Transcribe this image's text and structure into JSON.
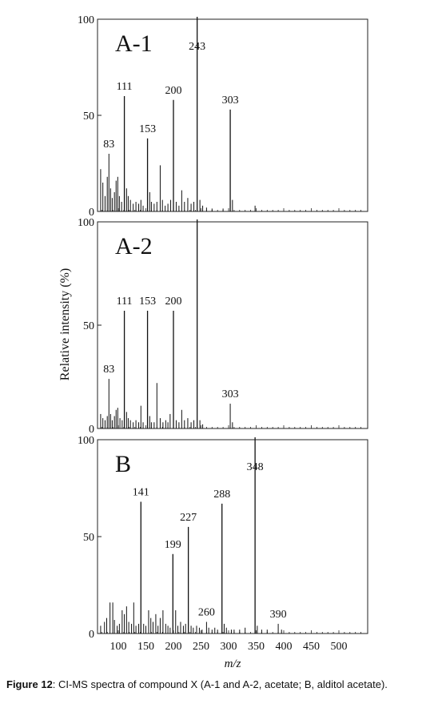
{
  "caption": {
    "label": "Figure 12",
    "text": ": CI-MS spectra of compound X (A-1 and A-2, acetate; B, alditol acetate)."
  },
  "shared_axes": {
    "xlabel": "m/z",
    "ylabel": "Relative intensity (%)",
    "x_ticks": [
      100,
      150,
      200,
      250,
      300,
      350,
      400,
      450,
      500
    ],
    "x_range": [
      60,
      550
    ],
    "y_ticks": [
      0,
      50,
      100
    ],
    "y_range": [
      0,
      100
    ]
  },
  "chart_data": [
    {
      "type": "bar",
      "title": "A-1",
      "xlabel": "",
      "ylabel": "",
      "xlim": [
        60,
        550
      ],
      "ylim": [
        0,
        100
      ],
      "peak_labels": [
        {
          "mz": 83,
          "text": "83",
          "intensity": 30
        },
        {
          "mz": 111,
          "text": "111",
          "intensity": 60
        },
        {
          "mz": 153,
          "text": "153",
          "intensity": 38
        },
        {
          "mz": 200,
          "text": "200",
          "intensity": 58
        },
        {
          "mz": 243,
          "text": "243",
          "intensity": 100
        },
        {
          "mz": 303,
          "text": "303",
          "intensity": 53
        }
      ],
      "peaks": [
        [
          68,
          22
        ],
        [
          72,
          15
        ],
        [
          76,
          8
        ],
        [
          80,
          18
        ],
        [
          83,
          30
        ],
        [
          86,
          12
        ],
        [
          89,
          7
        ],
        [
          93,
          10
        ],
        [
          96,
          16
        ],
        [
          99,
          18
        ],
        [
          102,
          8
        ],
        [
          106,
          5
        ],
        [
          111,
          60
        ],
        [
          115,
          12
        ],
        [
          118,
          8
        ],
        [
          122,
          6
        ],
        [
          127,
          4
        ],
        [
          132,
          5
        ],
        [
          137,
          4
        ],
        [
          141,
          6
        ],
        [
          145,
          3
        ],
        [
          153,
          38
        ],
        [
          157,
          10
        ],
        [
          160,
          5
        ],
        [
          165,
          4
        ],
        [
          170,
          5
        ],
        [
          176,
          24
        ],
        [
          180,
          6
        ],
        [
          185,
          3
        ],
        [
          190,
          4
        ],
        [
          195,
          6
        ],
        [
          200,
          58
        ],
        [
          205,
          5
        ],
        [
          210,
          3
        ],
        [
          215,
          11
        ],
        [
          220,
          5
        ],
        [
          226,
          7
        ],
        [
          232,
          4
        ],
        [
          237,
          5
        ],
        [
          243,
          100
        ],
        [
          248,
          6
        ],
        [
          253,
          3
        ],
        [
          260,
          2
        ],
        [
          270,
          1.5
        ],
        [
          290,
          1.5
        ],
        [
          303,
          53
        ],
        [
          307,
          6
        ],
        [
          348,
          3
        ]
      ]
    },
    {
      "type": "bar",
      "title": "A-2",
      "xlabel": "",
      "ylabel": "",
      "xlim": [
        60,
        550
      ],
      "ylim": [
        0,
        100
      ],
      "peak_labels": [
        {
          "mz": 83,
          "text": "83",
          "intensity": 24
        },
        {
          "mz": 111,
          "text": "111",
          "intensity": 57
        },
        {
          "mz": 153,
          "text": "153",
          "intensity": 57
        },
        {
          "mz": 200,
          "text": "200",
          "intensity": 57
        },
        {
          "mz": 303,
          "text": "303",
          "intensity": 12
        }
      ],
      "peaks": [
        [
          68,
          7
        ],
        [
          72,
          5
        ],
        [
          76,
          4
        ],
        [
          80,
          6
        ],
        [
          83,
          24
        ],
        [
          86,
          7
        ],
        [
          89,
          4
        ],
        [
          93,
          6
        ],
        [
          96,
          9
        ],
        [
          99,
          10
        ],
        [
          103,
          5
        ],
        [
          107,
          4
        ],
        [
          111,
          57
        ],
        [
          115,
          8
        ],
        [
          118,
          5
        ],
        [
          122,
          4
        ],
        [
          127,
          3
        ],
        [
          132,
          4
        ],
        [
          137,
          3
        ],
        [
          141,
          11
        ],
        [
          145,
          3
        ],
        [
          153,
          57
        ],
        [
          157,
          6
        ],
        [
          160,
          3
        ],
        [
          165,
          3
        ],
        [
          170,
          22
        ],
        [
          176,
          5
        ],
        [
          181,
          3
        ],
        [
          186,
          4
        ],
        [
          190,
          3
        ],
        [
          194,
          7
        ],
        [
          200,
          57
        ],
        [
          205,
          4
        ],
        [
          210,
          3
        ],
        [
          215,
          9
        ],
        [
          220,
          4
        ],
        [
          226,
          5
        ],
        [
          232,
          3
        ],
        [
          237,
          4
        ],
        [
          243,
          100
        ],
        [
          248,
          4
        ],
        [
          253,
          2
        ],
        [
          303,
          12
        ],
        [
          307,
          3
        ]
      ]
    },
    {
      "type": "bar",
      "title": "B",
      "xlabel": "",
      "ylabel": "",
      "xlim": [
        60,
        550
      ],
      "ylim": [
        0,
        100
      ],
      "peak_labels": [
        {
          "mz": 141,
          "text": "141",
          "intensity": 68
        },
        {
          "mz": 199,
          "text": "199",
          "intensity": 41
        },
        {
          "mz": 227,
          "text": "227",
          "intensity": 55
        },
        {
          "mz": 260,
          "text": "260",
          "intensity": 6
        },
        {
          "mz": 288,
          "text": "288",
          "intensity": 67
        },
        {
          "mz": 348,
          "text": "348",
          "intensity": 100
        },
        {
          "mz": 390,
          "text": "390",
          "intensity": 5
        }
      ],
      "peaks": [
        [
          68,
          4
        ],
        [
          75,
          6
        ],
        [
          79,
          8
        ],
        [
          85,
          16
        ],
        [
          90,
          16
        ],
        [
          93,
          7
        ],
        [
          98,
          4
        ],
        [
          102,
          5
        ],
        [
          107,
          12
        ],
        [
          111,
          10
        ],
        [
          115,
          14
        ],
        [
          119,
          6
        ],
        [
          124,
          5
        ],
        [
          128,
          16
        ],
        [
          132,
          4
        ],
        [
          137,
          5
        ],
        [
          141,
          68
        ],
        [
          146,
          5
        ],
        [
          150,
          4
        ],
        [
          155,
          12
        ],
        [
          159,
          8
        ],
        [
          163,
          6
        ],
        [
          168,
          10
        ],
        [
          172,
          4
        ],
        [
          176,
          8
        ],
        [
          181,
          12
        ],
        [
          186,
          5
        ],
        [
          190,
          4
        ],
        [
          194,
          3
        ],
        [
          199,
          41
        ],
        [
          204,
          12
        ],
        [
          208,
          4
        ],
        [
          213,
          6
        ],
        [
          218,
          4
        ],
        [
          222,
          5
        ],
        [
          227,
          55
        ],
        [
          232,
          4
        ],
        [
          236,
          3
        ],
        [
          242,
          4
        ],
        [
          247,
          3
        ],
        [
          252,
          2
        ],
        [
          260,
          6
        ],
        [
          264,
          3
        ],
        [
          270,
          2
        ],
        [
          275,
          3
        ],
        [
          280,
          2
        ],
        [
          288,
          67
        ],
        [
          292,
          5
        ],
        [
          296,
          3
        ],
        [
          305,
          2
        ],
        [
          310,
          2
        ],
        [
          320,
          2
        ],
        [
          330,
          3
        ],
        [
          348,
          100
        ],
        [
          352,
          4
        ],
        [
          360,
          2
        ],
        [
          370,
          2
        ],
        [
          390,
          5
        ],
        [
          396,
          2
        ]
      ]
    }
  ]
}
